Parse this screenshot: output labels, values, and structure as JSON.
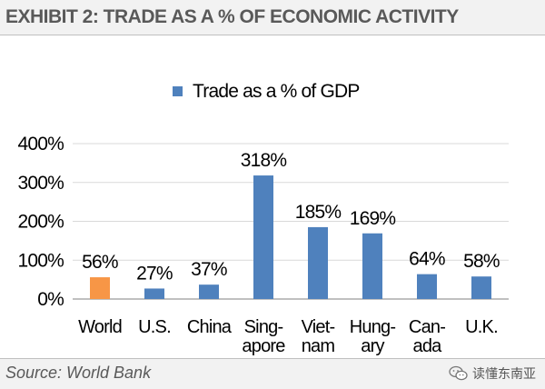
{
  "header": {
    "title": "EXHIBIT 2: TRADE AS A % OF ECONOMIC ACTIVITY"
  },
  "footer": {
    "source": "Source: World Bank",
    "watermark": "读懂东南亚",
    "watermark_icon": "wechat-icon"
  },
  "chart_data": {
    "type": "bar",
    "legend": {
      "label": "Trade as a % of GDP",
      "placement": "top-center"
    },
    "categories": [
      [
        "World"
      ],
      [
        "U.S."
      ],
      [
        "China"
      ],
      [
        "Sing-",
        "apore"
      ],
      [
        "Viet-",
        "nam"
      ],
      [
        "Hung-",
        "ary"
      ],
      [
        "Can-",
        "ada"
      ],
      [
        "U.K."
      ]
    ],
    "values": [
      56,
      27,
      37,
      318,
      185,
      169,
      64,
      58
    ],
    "data_labels": [
      "56%",
      "27%",
      "37%",
      "318%",
      "185%",
      "169%",
      "64%",
      "58%"
    ],
    "bar_colors": [
      "#f79646",
      "#4f81bd",
      "#4f81bd",
      "#4f81bd",
      "#4f81bd",
      "#4f81bd",
      "#4f81bd",
      "#4f81bd"
    ],
    "series_color": "#4f81bd",
    "highlight_color": "#f79646",
    "yticks": [
      0,
      100,
      200,
      300,
      400
    ],
    "ytick_labels": [
      "0%",
      "100%",
      "200%",
      "300%",
      "400%"
    ],
    "ylim": [
      0,
      400
    ],
    "grid": true
  }
}
